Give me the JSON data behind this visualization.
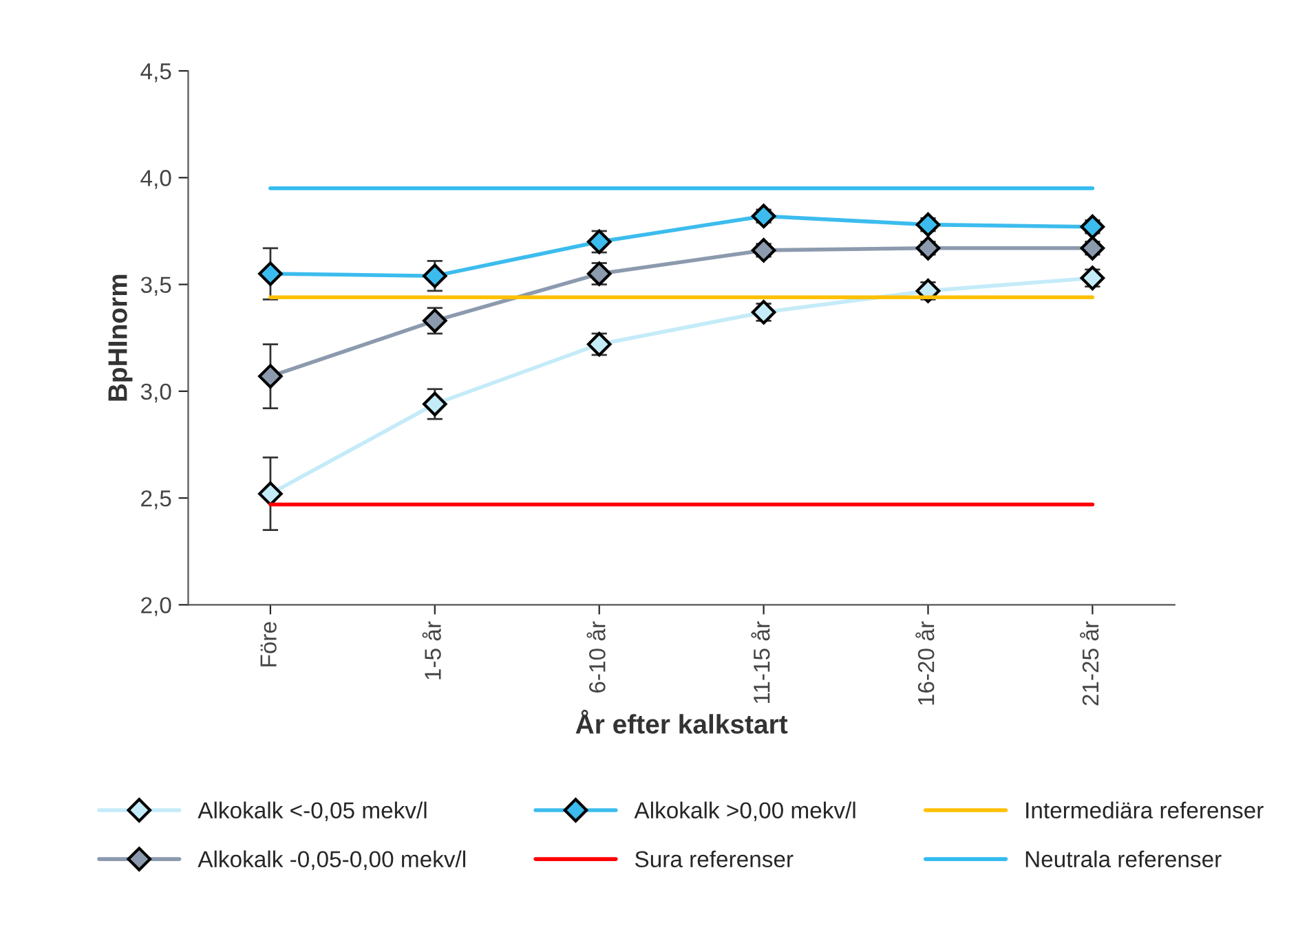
{
  "chart_data": {
    "type": "line",
    "xlabel": "År efter kalkstart",
    "ylabel": "BpHInorm",
    "categories": [
      "Före",
      "1-5 år",
      "6-10 år",
      "11-15 år",
      "16-20 år",
      "21-25 år"
    ],
    "series": [
      {
        "name": "Alkokalk <-0,05 mekv/l",
        "color": "#c4ebf8",
        "marker": "diamond",
        "values": [
          2.52,
          2.94,
          3.22,
          3.37,
          3.47,
          3.53
        ],
        "errors": [
          0.17,
          0.07,
          0.05,
          0.04,
          0.04,
          0.04
        ]
      },
      {
        "name": "Alkokalk -0,05-0,00 mekv/l",
        "color": "#8c9aae",
        "marker": "diamond",
        "values": [
          3.07,
          3.33,
          3.55,
          3.66,
          3.67,
          3.67
        ],
        "errors": [
          0.15,
          0.06,
          0.05,
          0.03,
          0.03,
          0.03
        ]
      },
      {
        "name": "Alkokalk >0,00 mekv/l",
        "color": "#3cbcee",
        "marker": "diamond",
        "values": [
          3.55,
          3.54,
          3.7,
          3.82,
          3.78,
          3.77
        ],
        "errors": [
          0.12,
          0.07,
          0.05,
          0.03,
          0.03,
          0.03
        ]
      },
      {
        "name": "Sura referenser",
        "color": "#ff0000",
        "marker": "none",
        "values": [
          2.47,
          2.47,
          2.47,
          2.47,
          2.47,
          2.47
        ]
      },
      {
        "name": "Intermediära referenser",
        "color": "#ffc000",
        "marker": "none",
        "values": [
          3.44,
          3.44,
          3.44,
          3.44,
          3.44,
          3.44
        ]
      },
      {
        "name": "Neutrala referenser",
        "color": "#33bbee",
        "marker": "none",
        "values": [
          3.95,
          3.95,
          3.95,
          3.95,
          3.95,
          3.95
        ]
      }
    ],
    "ylim": [
      2.0,
      4.5
    ],
    "yticks": [
      {
        "value": 2.0,
        "label": "2,0"
      },
      {
        "value": 2.5,
        "label": "2,5"
      },
      {
        "value": 3.0,
        "label": "3,0"
      },
      {
        "value": 3.5,
        "label": "3,5"
      },
      {
        "value": 4.0,
        "label": "4,0"
      },
      {
        "value": 4.5,
        "label": "4,5"
      }
    ],
    "grid": false,
    "legend": "bottom",
    "line_style": "solid"
  }
}
